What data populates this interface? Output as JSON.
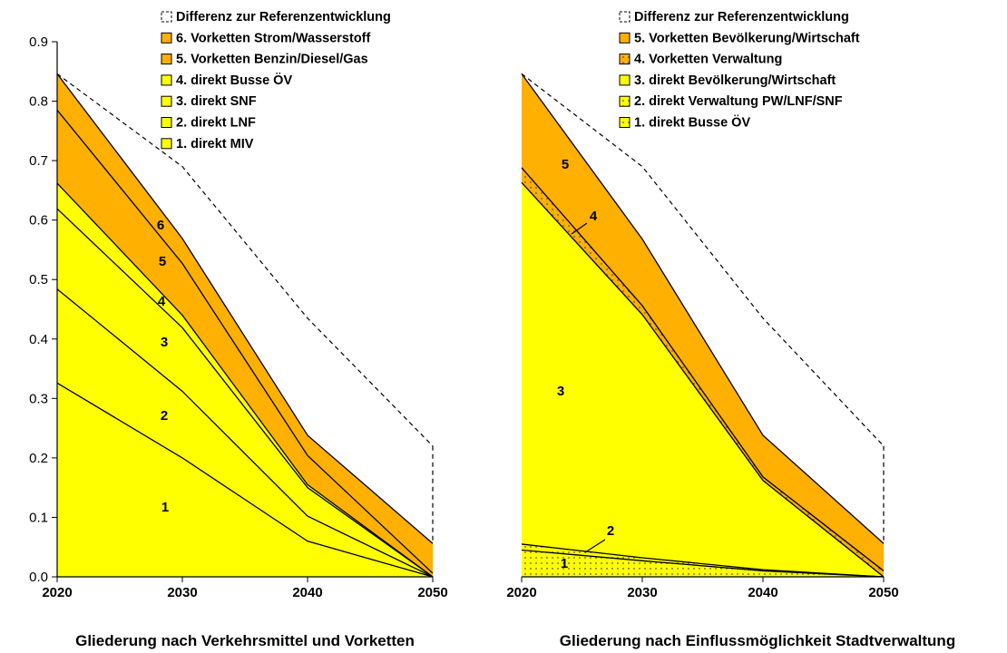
{
  "chart_data": [
    {
      "type": "area",
      "caption": "Gliederung nach Verkehrsmittel und Vorketten",
      "x": [
        2020,
        2030,
        2040,
        2050
      ],
      "xticks": [
        "2020",
        "2030",
        "2040",
        "2050"
      ],
      "yticks": [
        "0.0",
        "0.1",
        "0.2",
        "0.3",
        "0.4",
        "0.5",
        "0.6",
        "0.7",
        "0.8",
        "0.9"
      ],
      "ylim": [
        0,
        0.9
      ],
      "stacked": true,
      "series": [
        {
          "name": "1. direkt MIV",
          "band_label": "1",
          "values": [
            0.326,
            0.2,
            0.06,
            0.0
          ],
          "color": "#ffff00"
        },
        {
          "name": "2. direkt LNF",
          "band_label": "2",
          "values": [
            0.158,
            0.112,
            0.042,
            0.0
          ],
          "color": "#ffff00"
        },
        {
          "name": "3. direkt SNF",
          "band_label": "3",
          "values": [
            0.135,
            0.107,
            0.048,
            0.0
          ],
          "color": "#ffff00"
        },
        {
          "name": "4. direkt Busse ÖV",
          "band_label": "4",
          "values": [
            0.043,
            0.021,
            0.005,
            0.0
          ],
          "color": "#ffff00"
        },
        {
          "name": "5. Vorketten Benzin/Diesel/Gas",
          "band_label": "5",
          "values": [
            0.123,
            0.087,
            0.049,
            0.006
          ],
          "color": "#ffb000"
        },
        {
          "name": "6. Vorketten Strom/Wasserstoff",
          "band_label": "6",
          "values": [
            0.061,
            0.042,
            0.034,
            0.05
          ],
          "color": "#ffb000"
        }
      ],
      "reference": {
        "name": "Differenz zur Referenzentwicklung",
        "values": [
          0.846,
          0.69,
          0.435,
          0.22
        ],
        "style": "dashed"
      }
    },
    {
      "type": "area",
      "caption": "Gliederung nach Einflussmöglichkeit Stadtverwaltung",
      "x": [
        2020,
        2030,
        2040,
        2050
      ],
      "xticks": [
        "2020",
        "2030",
        "2040",
        "2050"
      ],
      "ylim": [
        0,
        0.9
      ],
      "stacked": true,
      "series": [
        {
          "name": "1. direkt Busse ÖV",
          "band_label": "1",
          "values": [
            0.045,
            0.027,
            0.01,
            0.0
          ],
          "color": "#ffff00",
          "pattern": "dots"
        },
        {
          "name": "2. direkt Verwaltung PW/LNF/SNF",
          "band_label": "2",
          "values": [
            0.01,
            0.005,
            0.002,
            0.0
          ],
          "color": "#ffff00",
          "pattern": "dots"
        },
        {
          "name": "3. direkt Bevölkerung/Wirtschaft",
          "band_label": "3",
          "values": [
            0.608,
            0.409,
            0.15,
            0.0
          ],
          "color": "#ffff00"
        },
        {
          "name": "4. Vorketten Verwaltung",
          "band_label": "4",
          "values": [
            0.025,
            0.015,
            0.006,
            0.01
          ],
          "color": "#ffb000",
          "pattern": "dots"
        },
        {
          "name": "5. Vorketten Bevölkerung/Wirtschaft",
          "band_label": "5",
          "values": [
            0.158,
            0.112,
            0.07,
            0.046
          ],
          "color": "#ffb000"
        }
      ],
      "reference": {
        "name": "Differenz zur Referenzentwicklung",
        "values": [
          0.846,
          0.69,
          0.435,
          0.22
        ],
        "style": "dashed"
      }
    }
  ]
}
